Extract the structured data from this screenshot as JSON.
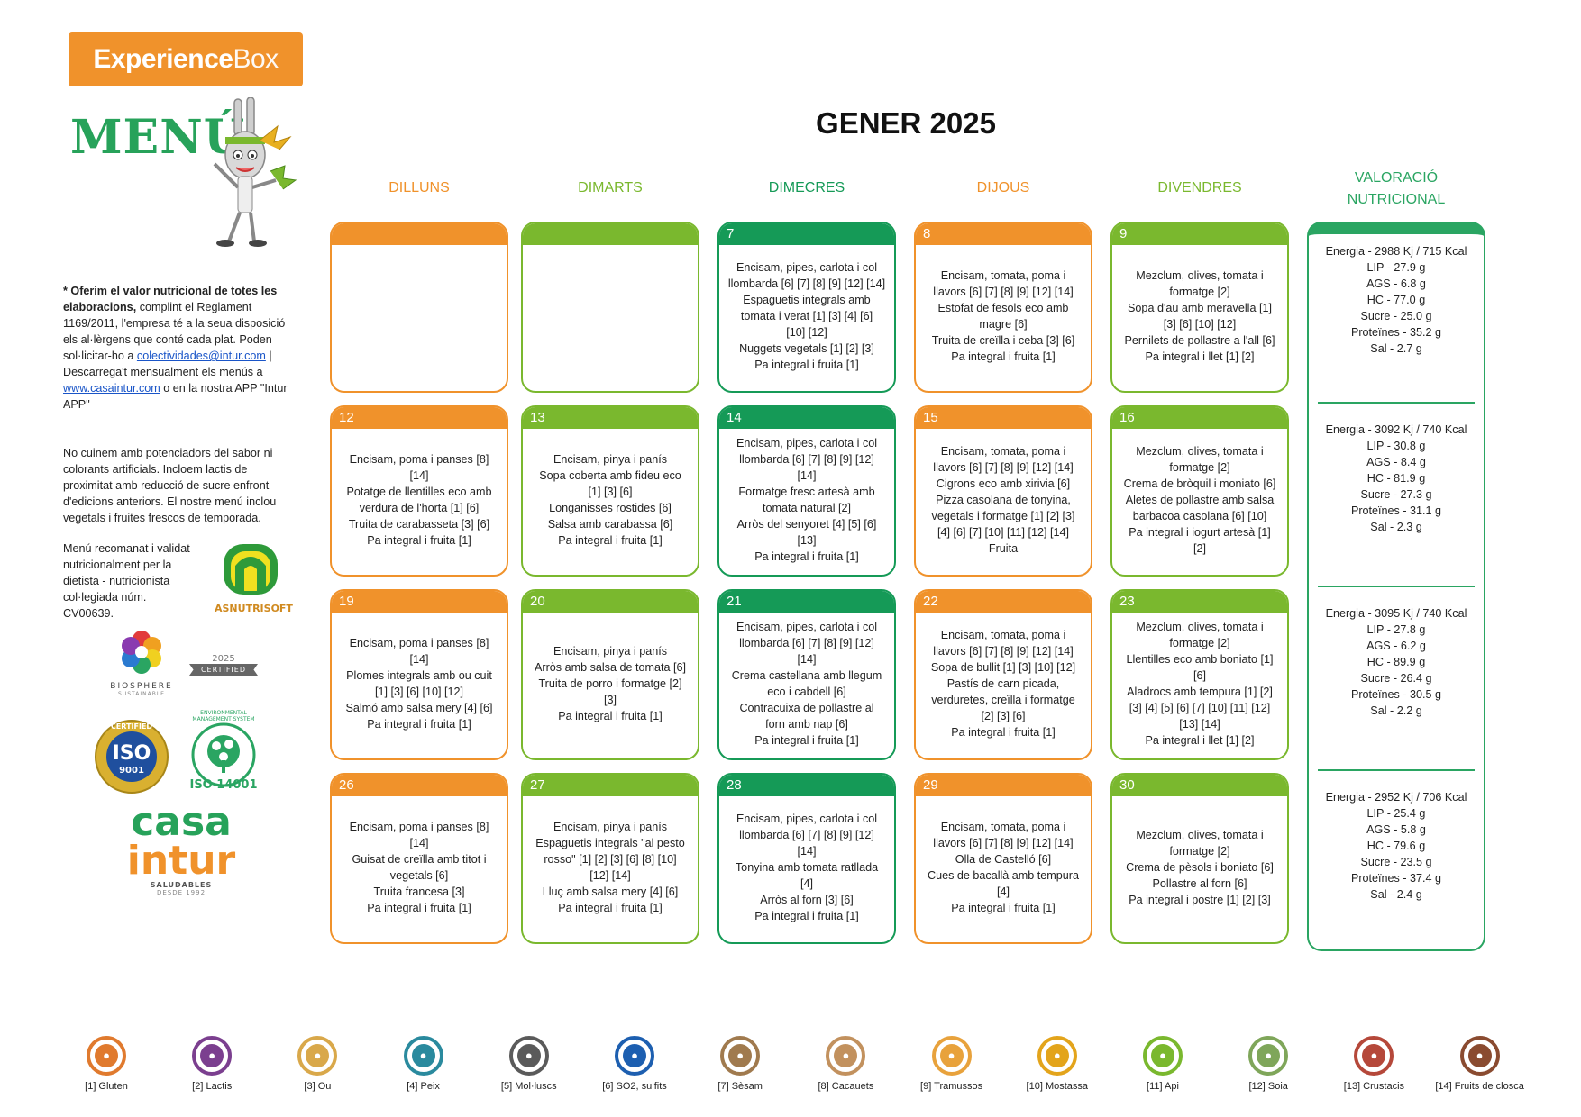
{
  "brand": {
    "name_bold": "Experience",
    "name_thin": "Box"
  },
  "menu_title": "MENÚ",
  "title": "GENER 2025",
  "days": [
    "DILLUNS",
    "DIMARTS",
    "DIMECRES",
    "DIJOUS",
    "DIVENDRES"
  ],
  "valoracio": {
    "line1": "VALORACIÓ",
    "line2": "NUTRICIONAL"
  },
  "side": {
    "p1_bold": "* Oferim el valor nutricional de totes les elaboracions,",
    "p1_rest": " complint el Reglament 1169/2011, l'empresa té a la seua disposició els al·lèrgens que conté cada plat. Poden sol·licitar-ho a ",
    "email": "colectividades@intur.com",
    "p1_mid": " | Descarrega't mensualment els menús a ",
    "web": "www.casaintur.com",
    "p1_end": " o en la nostra APP \"Intur APP\"",
    "p2": "No cuinem amb potenciadors del sabor ni colorants artificials. Incloem lactis de proximitat amb reducció de sucre enfront d'edicions anteriors. El nostre menú inclou vegetals i fruites frescos de temporada.",
    "p3": "Menú recomanat i validat nutricionalment per la dietista - nutricionista col·legiada núm. CV00639."
  },
  "logos": {
    "asnutrisoft": "ASNUTRISOFT",
    "biosphere": "BIOSPHERE",
    "biosphere_sub": "SUSTAINABLE",
    "certified_year": "2025",
    "certified": "CERTIFIED",
    "iso9001": "ISO",
    "iso9001_num": "9001",
    "iso9001_ring": "CERTIFIED",
    "iso14001": "ISO 14001",
    "iso14001_ring": "ENVIRONMENTAL MANAGEMENT SYSTEM",
    "casa": "casa",
    "intur": "intur",
    "saludables": "SALUDABLES",
    "desde": "DESDE 1992"
  },
  "cells": [
    {
      "day": "",
      "color": "orange",
      "text": ""
    },
    {
      "day": "",
      "color": "lime",
      "text": ""
    },
    {
      "day": "7",
      "color": "green",
      "text": "Encisam, pipes, carlota i col\nllombarda [6] [7] [8] [9] [12] [14]\nEspaguetis integrals amb\ntomata i verat [1] [3] [4] [6]\n[10] [12]\nNuggets vegetals [1] [2] [3]\nPa integral i fruita [1]"
    },
    {
      "day": "8",
      "color": "orange",
      "text": "Encisam, tomata, poma i\nllavors [6] [7] [8] [9] [12] [14]\nEstofat de fesols eco amb\nmagre [6]\nTruita de creïlla i ceba [3] [6]\nPa integral i fruita [1]"
    },
    {
      "day": "9",
      "color": "lime",
      "text": "Mezclum, olives, tomata i\nformatge [2]\nSopa d'au amb meravella [1]\n[3] [6] [10] [12]\nPernilets de pollastre a l'all [6]\nPa integral i llet [1] [2]"
    },
    {
      "day": "12",
      "color": "orange",
      "text": "Encisam, poma i panses [8]\n[14]\nPotatge de llentilles eco amb\nverdura de l'horta [1] [6]\nTruita de carabasseta [3] [6]\nPa integral i fruita [1]"
    },
    {
      "day": "13",
      "color": "lime",
      "text": "Encisam, pinya i panís\nSopa coberta amb fideu eco\n[1] [3] [6]\nLonganisses rostides [6]\nSalsa amb carabassa [6]\nPa integral i fruita [1]"
    },
    {
      "day": "14",
      "color": "green",
      "text": "Encisam, pipes, carlota i col\nllombarda [6] [7] [8] [9] [12]\n[14]\nFormatge fresc artesà amb\ntomata natural [2]\nArròs del senyoret [4] [5] [6]\n[13]\nPa integral i fruita [1]"
    },
    {
      "day": "15",
      "color": "orange",
      "text": "Encisam, tomata, poma i\nllavors [6] [7] [8] [9] [12] [14]\nCigrons eco amb xirivia [6]\nPizza casolana de tonyina,\nvegetals i formatge [1] [2] [3]\n[4] [6] [7] [10] [11] [12] [14]\nFruita"
    },
    {
      "day": "16",
      "color": "lime",
      "text": "Mezclum, olives, tomata i\nformatge [2]\nCrema de bròquil i moniato [6]\nAletes de pollastre amb salsa\nbarbacoa casolana [6] [10]\nPa integral i iogurt artesà [1]\n[2]"
    },
    {
      "day": "19",
      "color": "orange",
      "text": "Encisam, poma i panses [8]\n[14]\nPlomes integrals amb ou cuit\n[1] [3] [6] [10] [12]\nSalmó amb salsa mery [4] [6]\nPa integral i fruita [1]"
    },
    {
      "day": "20",
      "color": "lime",
      "text": "Encisam, pinya i panís\nArròs amb salsa de tomata [6]\nTruita de porro i formatge [2]\n[3]\nPa integral i fruita [1]"
    },
    {
      "day": "21",
      "color": "green",
      "text": "Encisam, pipes, carlota i col\nllombarda [6] [7] [8] [9] [12]\n[14]\nCrema castellana amb llegum\neco i cabdell [6]\nContracuixa de pollastre al\nforn amb nap [6]\nPa integral i fruita [1]"
    },
    {
      "day": "22",
      "color": "orange",
      "text": "Encisam, tomata, poma i\nllavors [6] [7] [8] [9] [12] [14]\nSopa de bullit [1] [3] [10] [12]\nPastís de carn picada,\nverduretes, creïlla i formatge\n[2] [3] [6]\nPa integral i fruita [1]"
    },
    {
      "day": "23",
      "color": "lime",
      "text": "Mezclum, olives, tomata i\nformatge [2]\nLlentilles eco amb boniato [1]\n[6]\nAladrocs amb tempura [1] [2]\n[3] [4] [5] [6] [7] [10] [11] [12]\n[13] [14]\nPa integral i llet [1] [2]"
    },
    {
      "day": "26",
      "color": "orange",
      "text": "Encisam, poma i panses [8]\n[14]\nGuisat de creïlla amb titot i\nvegetals [6]\nTruita francesa [3]\nPa integral i fruita [1]"
    },
    {
      "day": "27",
      "color": "lime",
      "text": "Encisam, pinya i panís\nEspaguetis integrals \"al pesto\nrosso\" [1] [2] [3] [6] [8] [10]\n[12] [14]\nLluç amb salsa mery [4] [6]\nPa integral i fruita [1]"
    },
    {
      "day": "28",
      "color": "green",
      "text": "Encisam, pipes, carlota i col\nllombarda [6] [7] [8] [9] [12]\n[14]\nTonyina amb tomata ratllada\n[4]\nArròs al forn [3] [6]\nPa integral i fruita [1]"
    },
    {
      "day": "29",
      "color": "orange",
      "text": "Encisam, tomata, poma i\nllavors [6] [7] [8] [9] [12] [14]\nOlla de Castelló [6]\nCues de bacallà amb tempura\n[4]\nPa integral i fruita [1]"
    },
    {
      "day": "30",
      "color": "lime",
      "text": "Mezclum, olives, tomata i\nformatge [2]\nCrema de pèsols i boniato [6]\nPollastre al forn [6]\nPa integral i postre [1] [2] [3]"
    }
  ],
  "nutrition": [
    "Energia - 2988 Kj / 715 Kcal\nLIP - 27.9 g\nAGS - 6.8 g\nHC - 77.0 g\nSucre - 25.0 g\nProteïnes - 35.2 g\nSal - 2.7 g",
    "Energia - 3092 Kj / 740 Kcal\nLIP - 30.8 g\nAGS - 8.4 g\nHC - 81.9 g\nSucre - 27.3 g\nProteïnes - 31.1 g\nSal - 2.3 g",
    "Energia - 3095 Kj / 740 Kcal\nLIP - 27.8 g\nAGS - 6.2 g\nHC - 89.9 g\nSucre - 26.4 g\nProteïnes - 30.5 g\nSal - 2.2 g",
    "Energia - 2952 Kj / 706 Kcal\nLIP - 25.4 g\nAGS - 5.8 g\nHC - 79.6 g\nSucre - 23.5 g\nProteïnes - 37.4 g\nSal - 2.4 g"
  ],
  "allergens": [
    {
      "label": "[1] Gluten",
      "color": "#e07a2e",
      "icon": "wheat-icon"
    },
    {
      "label": "[2] Lactis",
      "color": "#7b3f8f",
      "icon": "milk-icon"
    },
    {
      "label": "[3] Ou",
      "color": "#d9a84a",
      "icon": "egg-icon"
    },
    {
      "label": "[4] Peix",
      "color": "#2a8a9e",
      "icon": "fish-icon"
    },
    {
      "label": "[5] Mol·luscs",
      "color": "#5a5a5a",
      "icon": "shell-icon"
    },
    {
      "label": "[6] SO2, sulfits",
      "color": "#1d5fb0",
      "icon": "so2-icon"
    },
    {
      "label": "[7] Sèsam",
      "color": "#a07a4e",
      "icon": "sesame-icon"
    },
    {
      "label": "[8] Cacauets",
      "color": "#c2915e",
      "icon": "peanut-icon"
    },
    {
      "label": "[9] Tramussos",
      "color": "#e8a23c",
      "icon": "lupin-icon"
    },
    {
      "label": "[10] Mostassa",
      "color": "#e3a41b",
      "icon": "mustard-icon"
    },
    {
      "label": "[11] Api",
      "color": "#7ab82e",
      "icon": "celery-icon"
    },
    {
      "label": "[12] Soia",
      "color": "#7fa65a",
      "icon": "soy-icon"
    },
    {
      "label": "[13] Crustacis",
      "color": "#b5483a",
      "icon": "crustacean-icon"
    },
    {
      "label": "[14] Fruits de closca",
      "color": "#8a4b30",
      "icon": "nut-icon"
    }
  ]
}
